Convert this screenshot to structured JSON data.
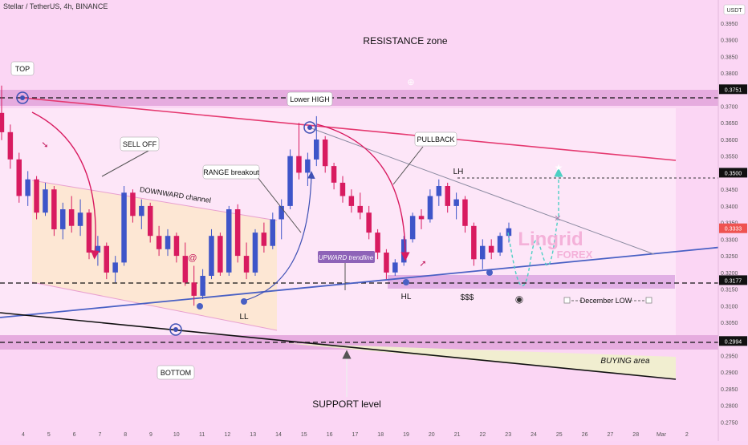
{
  "header": {
    "symbol_title": "Stellar / TetherUS, 4h, BINANCE",
    "currency": "USDT"
  },
  "chart_data": {
    "type": "candlestick",
    "title": "RESISTANCE zone",
    "y_axis": {
      "ylim": [
        0.27366,
        0.40195
      ],
      "ticks": [
        "0.3950",
        "0.3900",
        "0.3850",
        "0.3800",
        "0.3750",
        "0.3700",
        "0.3650",
        "0.3600",
        "0.3550",
        "0.3500",
        "0.3450",
        "0.3400",
        "0.3350",
        "0.3300",
        "0.3250",
        "0.3200",
        "0.3150",
        "0.3100",
        "0.3050",
        "0.3000",
        "0.2950",
        "0.2900",
        "0.2850",
        "0.2800",
        "0.2750"
      ],
      "highlighted_levels": [
        {
          "label": "0.3751",
          "value": 0.3751
        },
        {
          "label": "0.3500",
          "value": 0.35
        },
        {
          "label": "0.3333",
          "value": 0.3333,
          "color": "#ef5350"
        },
        {
          "label": "0.3177",
          "value": 0.3177
        },
        {
          "label": "0.2994",
          "value": 0.2994
        }
      ]
    },
    "x_axis": {
      "ticks": [
        "4",
        "5",
        "6",
        "7",
        "8",
        "9",
        "10",
        "11",
        "12",
        "13",
        "14",
        "15",
        "16",
        "17",
        "18",
        "19",
        "20",
        "21",
        "22",
        "23",
        "24",
        "25",
        "26",
        "27",
        "28",
        "Mar",
        "2"
      ]
    },
    "annotations": {
      "top": "TOP",
      "lower_high": "Lower HIGH",
      "sell_off": "SELL OFF",
      "pullback": "PULLBACK",
      "range_breakout": "RANGE breakout",
      "downward_channel": "DOWNWARD channel",
      "upward_trendline": "UPWARD trendline",
      "lh": "LH",
      "hl": "HL",
      "ll": "LL",
      "dollars": "$$$",
      "december_low": "December LOW",
      "bottom": "BOTTOM",
      "buying_area": "BUYING area",
      "support_level": "SUPPORT level"
    },
    "watermark": {
      "line1": "Lingrid",
      "line2": "FOREX"
    },
    "candles": [
      [
        0.368,
        0.3762,
        0.3598,
        0.3622
      ],
      [
        0.3622,
        0.3645,
        0.3512,
        0.354
      ],
      [
        0.354,
        0.356,
        0.341,
        0.343
      ],
      [
        0.343,
        0.3505,
        0.34,
        0.348
      ],
      [
        0.348,
        0.349,
        0.336,
        0.338
      ],
      [
        0.338,
        0.347,
        0.337,
        0.345
      ],
      [
        0.345,
        0.346,
        0.331,
        0.333
      ],
      [
        0.333,
        0.341,
        0.33,
        0.339
      ],
      [
        0.339,
        0.343,
        0.332,
        0.334
      ],
      [
        0.334,
        0.342,
        0.331,
        0.338
      ],
      [
        0.338,
        0.339,
        0.324,
        0.326
      ],
      [
        0.326,
        0.331,
        0.322,
        0.328
      ],
      [
        0.328,
        0.329,
        0.318,
        0.32
      ],
      [
        0.32,
        0.325,
        0.317,
        0.323
      ],
      [
        0.323,
        0.346,
        0.322,
        0.344
      ],
      [
        0.344,
        0.345,
        0.335,
        0.337
      ],
      [
        0.337,
        0.342,
        0.333,
        0.34
      ],
      [
        0.34,
        0.341,
        0.329,
        0.331
      ],
      [
        0.331,
        0.334,
        0.325,
        0.327
      ],
      [
        0.327,
        0.333,
        0.325,
        0.331
      ],
      [
        0.331,
        0.332,
        0.323,
        0.325
      ],
      [
        0.325,
        0.329,
        0.316,
        0.317
      ],
      [
        0.317,
        0.322,
        0.31,
        0.313
      ],
      [
        0.313,
        0.321,
        0.312,
        0.319
      ],
      [
        0.319,
        0.333,
        0.318,
        0.331
      ],
      [
        0.331,
        0.332,
        0.319,
        0.32
      ],
      [
        0.32,
        0.34,
        0.319,
        0.339
      ],
      [
        0.339,
        0.3405,
        0.323,
        0.325
      ],
      [
        0.325,
        0.329,
        0.318,
        0.32
      ],
      [
        0.32,
        0.333,
        0.319,
        0.332
      ],
      [
        0.332,
        0.335,
        0.326,
        0.328
      ],
      [
        0.328,
        0.338,
        0.327,
        0.336
      ],
      [
        0.336,
        0.342,
        0.33,
        0.34
      ],
      [
        0.34,
        0.357,
        0.339,
        0.355
      ],
      [
        0.355,
        0.365,
        0.348,
        0.35
      ],
      [
        0.35,
        0.356,
        0.346,
        0.354
      ],
      [
        0.354,
        0.367,
        0.352,
        0.36
      ],
      [
        0.36,
        0.361,
        0.35,
        0.352
      ],
      [
        0.352,
        0.353,
        0.345,
        0.347
      ],
      [
        0.347,
        0.349,
        0.341,
        0.343
      ],
      [
        0.343,
        0.345,
        0.338,
        0.34
      ],
      [
        0.34,
        0.344,
        0.336,
        0.338
      ],
      [
        0.338,
        0.34,
        0.33,
        0.332
      ],
      [
        0.332,
        0.333,
        0.324,
        0.326
      ],
      [
        0.326,
        0.327,
        0.318,
        0.32
      ],
      [
        0.32,
        0.324,
        0.319,
        0.323
      ],
      [
        0.323,
        0.331,
        0.322,
        0.33
      ],
      [
        0.33,
        0.338,
        0.329,
        0.337
      ],
      [
        0.337,
        0.339,
        0.333,
        0.336
      ],
      [
        0.336,
        0.345,
        0.335,
        0.343
      ],
      [
        0.343,
        0.348,
        0.34,
        0.346
      ],
      [
        0.346,
        0.347,
        0.338,
        0.34
      ],
      [
        0.34,
        0.344,
        0.336,
        0.342
      ],
      [
        0.342,
        0.343,
        0.332,
        0.334
      ],
      [
        0.334,
        0.335,
        0.322,
        0.324
      ],
      [
        0.324,
        0.33,
        0.321,
        0.328
      ],
      [
        0.328,
        0.33,
        0.324,
        0.326
      ],
      [
        0.326,
        0.332,
        0.325,
        0.331
      ],
      [
        0.331,
        0.335,
        0.329,
        0.3333
      ]
    ]
  }
}
